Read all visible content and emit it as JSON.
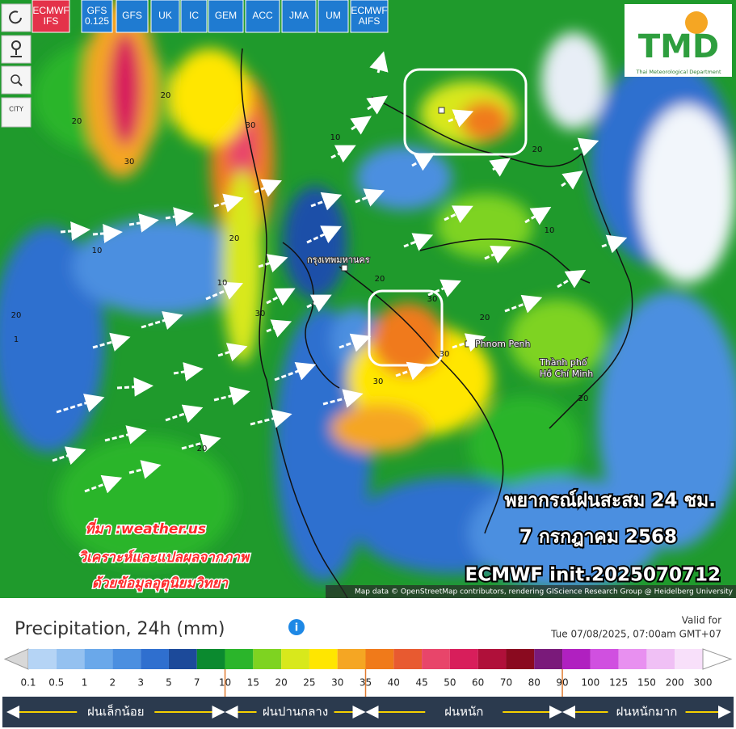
{
  "toolbar": {
    "models": [
      {
        "lines": [
          "ECMWF",
          "IFS"
        ],
        "color": "#e4324a"
      },
      {
        "lines": [
          "GFS",
          "0.125"
        ],
        "color": "#1f7bd1"
      },
      {
        "lines": [
          "GFS"
        ],
        "color": "#1f7bd1"
      },
      {
        "lines": [
          "UK"
        ],
        "color": "#1f7bd1"
      },
      {
        "lines": [
          "IC"
        ],
        "color": "#1f7bd1"
      },
      {
        "lines": [
          "GEM"
        ],
        "color": "#1f7bd1"
      },
      {
        "lines": [
          "ACC"
        ],
        "color": "#1f7bd1"
      },
      {
        "lines": [
          "JMA"
        ],
        "color": "#1f7bd1"
      },
      {
        "lines": [
          "UM"
        ],
        "color": "#1f7bd1"
      },
      {
        "lines": [
          "ECMWF",
          "AIFS"
        ],
        "color": "#1f7bd1"
      }
    ]
  },
  "side_buttons": {
    "city": "CITY"
  },
  "logo": {
    "title": "TMD",
    "subtitle": "Thai Meteorological Department"
  },
  "map": {
    "places": [
      "กรุงเทพมหานคร",
      "Phnom Penh",
      "Thành phố",
      "Hồ Chí Minh"
    ],
    "contour_labels": [
      "20",
      "20",
      "30",
      "30",
      "20",
      "10",
      "10",
      "30",
      "20",
      "10",
      "20",
      "30",
      "30",
      "20",
      "30",
      "20",
      "10",
      "20",
      "1",
      "20"
    ],
    "attribution": "Map data © OpenStreetMap contributors, rendering GIScience Research Group @ Heidelberg University"
  },
  "overlay": {
    "forecast": [
      "พยากรณ์ฝนสะสม 24 ชม.",
      "7 กรกฎาคม 2568",
      "ECMWF init.2025070712"
    ],
    "source": [
      "ที่มา :weather.us",
      "วิเคราะห์และแปลผลจากภาพ",
      "ด้วยข้อมูลอุตุนิยมวิทยา"
    ]
  },
  "legend": {
    "title": "Precipitation, 24h (mm)",
    "valid_label": "Valid for",
    "valid_time": "Tue 07/08/2025, 07:00am GMT+07",
    "ticks": [
      "0.1",
      "0.5",
      "1",
      "2",
      "3",
      "5",
      "7",
      "10",
      "15",
      "20",
      "25",
      "30",
      "35",
      "40",
      "45",
      "50",
      "60",
      "70",
      "80",
      "90",
      "100",
      "125",
      "150",
      "200",
      "300"
    ],
    "colors": [
      "#d8d8d8",
      "#b5d4f5",
      "#94c1f0",
      "#6aa8ea",
      "#4b8fe0",
      "#2f6fcf",
      "#1c4a9a",
      "#0b8a2f",
      "#2bb52b",
      "#7ed321",
      "#d8e81c",
      "#ffe600",
      "#f5a623",
      "#f07a1a",
      "#e85a30",
      "#e8456a",
      "#d81e5b",
      "#b0103a",
      "#8a0a1f",
      "#7a1a7a",
      "#b020c0",
      "#d050e0",
      "#e890f0",
      "#f0c0f5",
      "#f8e0fa",
      "#ffffff"
    ],
    "bands": [
      "ฝนเล็กน้อย",
      "ฝนปานกลาง",
      "ฝนหนัก",
      "ฝนหนักมาก"
    ]
  }
}
